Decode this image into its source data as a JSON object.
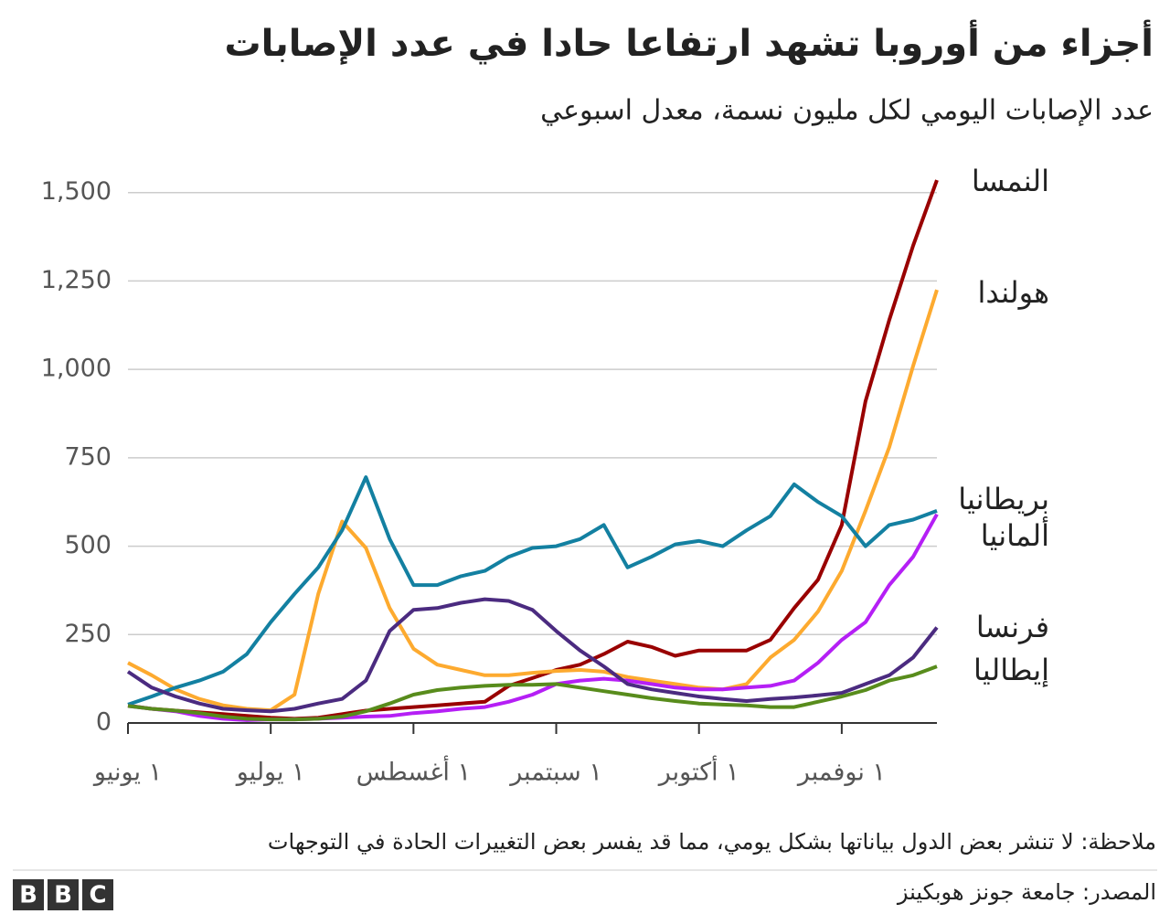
{
  "chart_data": {
    "type": "line",
    "title": "أجزاء من أوروبا تشهد ارتفاعا حادا في عدد الإصابات",
    "subtitle": "عدد الإصابات اليومي لكل مليون نسمة، معدل اسبوعي",
    "note": "ملاحظة: لا تنشر بعض الدول بياناتها بشكل يومي، مما قد يفسر بعض التغييرات الحادة في التوجهات",
    "source": "المصدر: جامعة جونز هوبكينز",
    "logo": [
      "B",
      "B",
      "C"
    ],
    "categories": [
      "١ يونيو",
      null,
      null,
      null,
      null,
      null,
      "١ يوليو",
      null,
      null,
      null,
      null,
      null,
      "١ أغسطس",
      null,
      null,
      null,
      null,
      null,
      "١ سبتمبر",
      null,
      null,
      null,
      null,
      null,
      "١ أكتوبر",
      null,
      null,
      null,
      null,
      null,
      "١ نوفمبر",
      null,
      null,
      null,
      null
    ],
    "ylim": [
      0,
      1600
    ],
    "yticks": [
      0,
      250,
      500,
      750,
      {
        "value": 1000,
        "label": "1,000"
      },
      {
        "value": 1250,
        "label": "1,250"
      },
      {
        "value": 1500,
        "label": "1,500"
      }
    ],
    "grid": true,
    "series": [
      {
        "name": "النمسا",
        "color": "#990000",
        "values": [
          49,
          40,
          35,
          30,
          25,
          20,
          15,
          12,
          15,
          25,
          35,
          40,
          45,
          50,
          55,
          60,
          105,
          127,
          150,
          165,
          195,
          230,
          215,
          190,
          205,
          205,
          205,
          235,
          325,
          405,
          560,
          910,
          1140,
          1350,
          1535
        ]
      },
      {
        "name": "هولندا",
        "color": "#fdaa2f",
        "values": [
          170,
          135,
          95,
          68,
          50,
          40,
          36,
          80,
          365,
          570,
          495,
          325,
          210,
          165,
          150,
          135,
          135,
          142,
          147,
          150,
          145,
          130,
          120,
          110,
          100,
          95,
          110,
          185,
          235,
          315,
          430,
          600,
          780,
          1010,
          1225
        ]
      },
      {
        "name": "بريطانيا",
        "color": "#1380a1",
        "values": [
          52,
          75,
          100,
          120,
          145,
          195,
          285,
          365,
          440,
          545,
          695,
          520,
          390,
          390,
          415,
          430,
          470,
          495,
          500,
          520,
          560,
          440,
          470,
          505,
          515,
          500,
          545,
          585,
          675,
          625,
          585,
          500,
          560,
          575,
          600
        ]
      },
      {
        "name": "ألمانيا",
        "color": "#b51ff5",
        "values": [
          48,
          40,
          33,
          20,
          12,
          8,
          10,
          10,
          12,
          15,
          18,
          20,
          28,
          33,
          40,
          45,
          60,
          80,
          110,
          120,
          125,
          120,
          110,
          100,
          95,
          95,
          100,
          105,
          120,
          170,
          235,
          285,
          390,
          470,
          590
        ]
      },
      {
        "name": "فرنسا",
        "color": "#4b2b80",
        "values": [
          145,
          100,
          75,
          55,
          40,
          36,
          33,
          40,
          55,
          68,
          120,
          260,
          320,
          325,
          340,
          350,
          345,
          320,
          260,
          205,
          160,
          110,
          95,
          85,
          75,
          68,
          62,
          68,
          72,
          78,
          85,
          110,
          135,
          185,
          270
        ]
      },
      {
        "name": "إيطاليا",
        "color": "#588c1c",
        "values": [
          48,
          40,
          35,
          28,
          18,
          12,
          10,
          10,
          12,
          18,
          33,
          55,
          80,
          93,
          100,
          105,
          108,
          108,
          110,
          100,
          90,
          80,
          70,
          62,
          55,
          52,
          50,
          45,
          45,
          60,
          75,
          93,
          120,
          135,
          160
        ]
      }
    ]
  }
}
